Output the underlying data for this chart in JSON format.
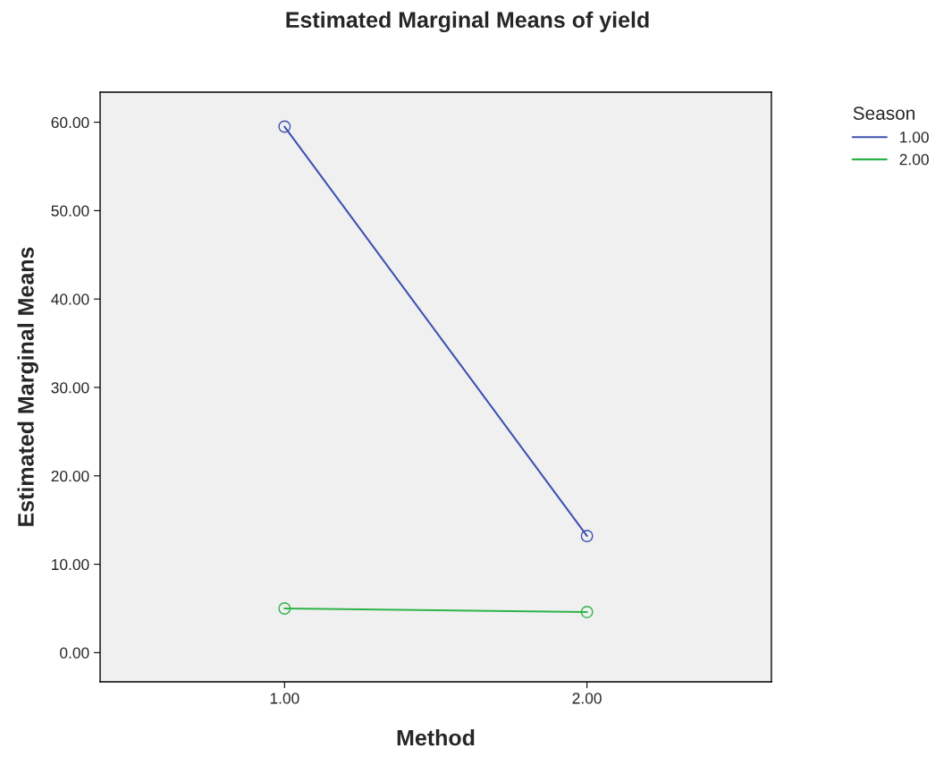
{
  "chart_data": {
    "type": "line",
    "title": "Estimated Marginal Means of yield",
    "xlabel": "Method",
    "ylabel": "Estimated Marginal Means",
    "legend_title": "Season",
    "categories": [
      "1.00",
      "2.00"
    ],
    "series": [
      {
        "name": "1.00",
        "color": "#3f51b1",
        "values": [
          59.5,
          13.2
        ]
      },
      {
        "name": "2.00",
        "color": "#2eb34a",
        "values": [
          5.0,
          4.6
        ]
      }
    ],
    "ylim": [
      -3.3,
      63.4
    ],
    "yticks": [
      {
        "value": 0,
        "label": "0.00"
      },
      {
        "value": 10,
        "label": "10.00"
      },
      {
        "value": 20,
        "label": "20.00"
      },
      {
        "value": 30,
        "label": "30.00"
      },
      {
        "value": 40,
        "label": "40.00"
      },
      {
        "value": 50,
        "label": "50.00"
      },
      {
        "value": 60,
        "label": "60.00"
      }
    ],
    "marker": "circle",
    "line_style": "solid",
    "grid": false,
    "legend": "top right"
  }
}
